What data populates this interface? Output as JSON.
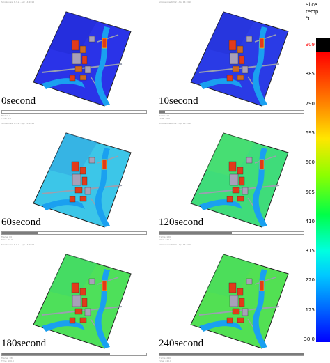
{
  "panels": [
    {
      "label": "0second",
      "progress": 0.0,
      "palette": "blue",
      "header": "Smokeview 6.3.2 - Apr 14 2016",
      "timeline": [
        "Frame: 0",
        "Time: 0.0"
      ]
    },
    {
      "label": "10second",
      "progress": 0.04,
      "palette": "blue2",
      "header": "Smokeview 6.3.2 - Apr 14 2016",
      "timeline": [
        "Frame: 10",
        "Time: 10.0"
      ]
    },
    {
      "label": "60second",
      "progress": 0.25,
      "palette": "cyan",
      "header": "Smokeview 6.3.2 - Apr 14 2016",
      "timeline": [
        "Frame: 60",
        "Time: 60.0"
      ]
    },
    {
      "label": "120second",
      "progress": 0.5,
      "palette": "green1",
      "header": "Smokeview 6.3.2 - Apr 14 2016",
      "timeline": [
        "Frame: 120",
        "Time: 120.0"
      ]
    },
    {
      "label": "180second",
      "progress": 0.75,
      "palette": "green2",
      "header": "Smokeview 6.3.2 - Apr 14 2016",
      "timeline": [
        "Frame: 180",
        "Time: 180.0"
      ]
    },
    {
      "label": "240second",
      "progress": 1.0,
      "palette": "green3",
      "header": "Smokeview 6.3.2 - Apr 14 2016",
      "timeline": [
        "Frame: 240",
        "Time: 240.0"
      ]
    }
  ],
  "legend": {
    "title_lines": [
      "Slice",
      "temp",
      "°C"
    ],
    "ticks": [
      "909",
      "885",
      "790",
      "695",
      "600",
      "505",
      "410",
      "315",
      "220",
      "125",
      "30.0"
    ],
    "max_tick_color": "#ff0000"
  },
  "palettes": {
    "blue": {
      "ground": "#2a33e8",
      "shade": "#1f28d0"
    },
    "blue2": {
      "ground": "#2a3be6",
      "shade": "#2330d4"
    },
    "cyan": {
      "ground": "#3cc6e8",
      "shade": "#2f9ee0"
    },
    "green1": {
      "ground": "#3fdc7a",
      "shade": "#52e06a"
    },
    "green2": {
      "ground": "#4ee05a",
      "shade": "#3cd86e"
    },
    "green3": {
      "ground": "#52e053",
      "shade": "#44dc64"
    }
  },
  "colors": {
    "river": "#1aa0f0",
    "road": "#9aa0b0",
    "building_hot": "#e23a1a",
    "building_warm": "#d06a20",
    "building_cool": "#a8a0b8"
  }
}
